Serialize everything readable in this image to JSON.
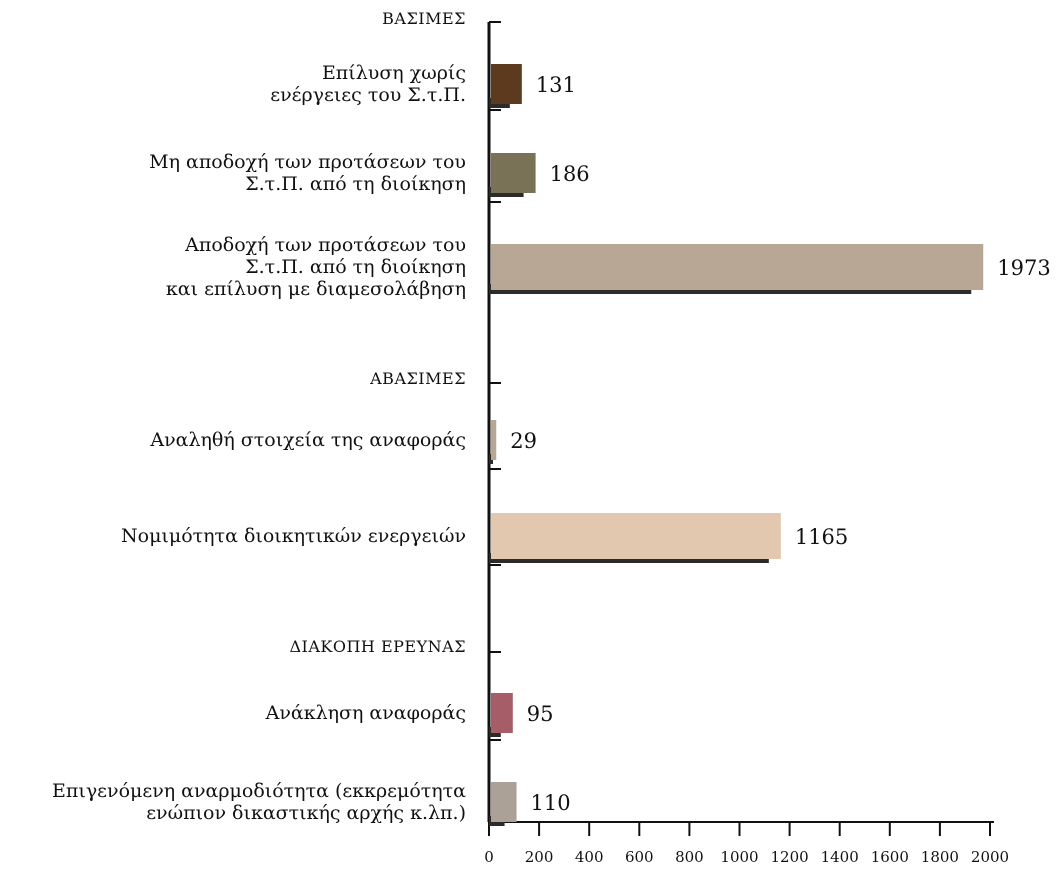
{
  "chart_data": {
    "type": "bar",
    "orientation": "horizontal",
    "xlim": [
      0,
      2000
    ],
    "xticks": [
      "0",
      "200",
      "400",
      "600",
      "800",
      "1000",
      "1200",
      "1400",
      "1600",
      "1800",
      "2000"
    ],
    "groups": [
      {
        "label": "ΒΑΣΙΜΕΣ"
      },
      {
        "label": "ΑΒΑΣΙΜΕΣ"
      },
      {
        "label": "ΔΙΑΚΟΠΗ ΕΡΕΥΝΑΣ"
      }
    ],
    "bars": [
      {
        "label_lines": [
          "Επίλυση χωρίς",
          "ενέργειες του Σ.τ.Π."
        ],
        "value": 131,
        "value_label": "131",
        "color": "#5b3a1e"
      },
      {
        "label_lines": [
          "Μη αποδοχή των προτάσεων του",
          "Σ.τ.Π. από τη διοίκηση"
        ],
        "value": 186,
        "value_label": "186",
        "color": "#7a7257"
      },
      {
        "label_lines": [
          "Αποδοχή των προτάσεων του",
          "Σ.τ.Π. από τη διοίκηση",
          "και επίλυση με διαμεσολάβηση"
        ],
        "value": 1973,
        "value_label": "1973",
        "color": "#b9a796"
      },
      {
        "label_lines": [
          "Αναληθή στοιχεία της αναφοράς"
        ],
        "value": 29,
        "value_label": "29",
        "color": "#b9a796"
      },
      {
        "label_lines": [
          "Νομιμότητα διοικητικών ενεργειών"
        ],
        "value": 1165,
        "value_label": "1165",
        "color": "#e2c8ae"
      },
      {
        "label_lines": [
          "Ανάκληση αναφοράς"
        ],
        "value": 95,
        "value_label": "95",
        "color": "#a65d68"
      },
      {
        "label_lines": [
          "Επιγενόμενη αναρμοδιότητα (εκκρεμότητα",
          "ενώπιον δικαστικής αρχής κ.λπ.)"
        ],
        "value": 110,
        "value_label": "110",
        "color": "#aba197"
      }
    ],
    "shadow_color": "#2b2b2b",
    "axis_color": "#111111"
  }
}
